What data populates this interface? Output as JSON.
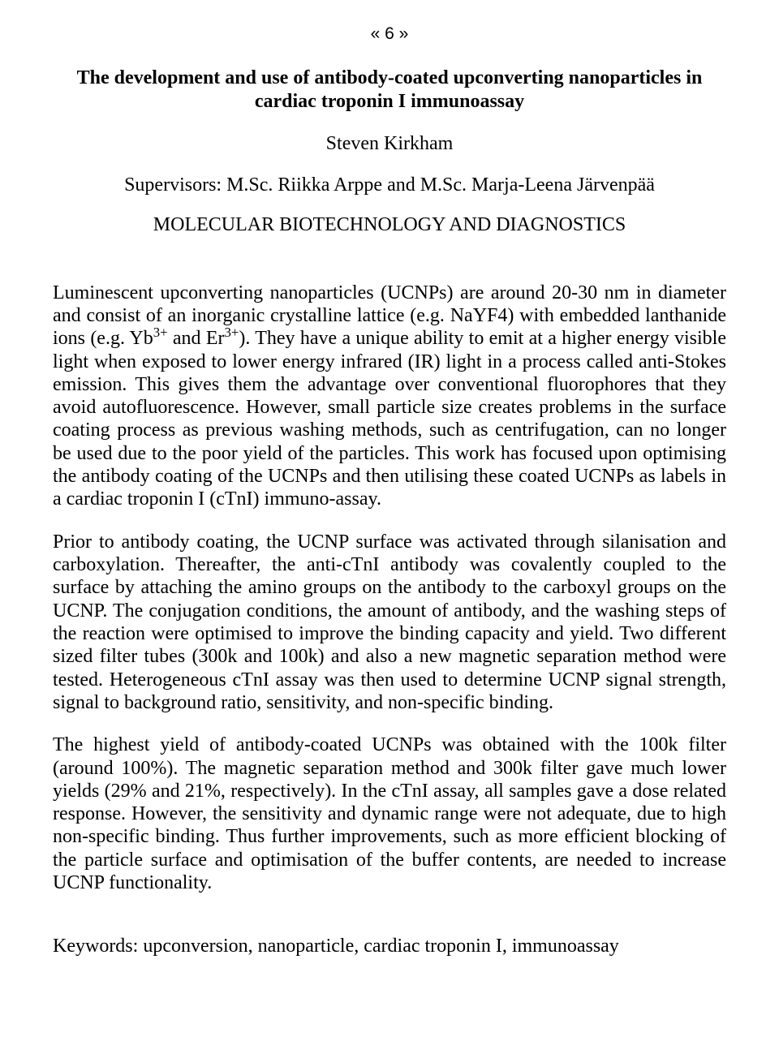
{
  "page_number_display": "« 6 »",
  "title": "The development and use of antibody-coated upconverting nanoparticles in cardiac troponin I immunoassay",
  "author": "Steven Kirkham",
  "supervisors": "Supervisors: M.Sc. Riikka Arppe and M.Sc. Marja-Leena Järvenpää",
  "department": "MOLECULAR BIOTECHNOLOGY AND DIAGNOSTICS",
  "paragraphs": {
    "p1_a": "Luminescent upconverting nanoparticles (UCNPs) are around 20-30 nm in diameter and consist of an inorganic crystalline lattice (e.g. NaYF4) with embedded lanthanide ions (e.g. Yb",
    "p1_sup1": "3+",
    "p1_b": " and Er",
    "p1_sup2": "3+",
    "p1_c": "). They have a unique ability to emit at a higher energy visible light when exposed to lower energy infrared (IR) light in a process called anti-Stokes emission. This gives them the advantage over conventional fluorophores that they avoid autofluorescence. However, small particle size creates problems in the surface coating process as previous washing methods, such as centrifugation, can no longer be used due to the poor yield of the particles. This work has focused upon optimising the antibody coating of the UCNPs and then utilising these coated UCNPs as labels in a cardiac troponin I (cTnI) immuno-assay.",
    "p2": "Prior to antibody coating, the UCNP surface was activated through silanisation and carboxylation. Thereafter, the anti-cTnI antibody was covalently coupled to the surface by attaching the amino groups on the antibody to the carboxyl groups on the UCNP. The conjugation conditions, the amount of antibody, and the washing steps of the reaction were optimised to improve the binding capacity and yield. Two different sized filter tubes (300k and 100k) and also a new magnetic separation method were tested. Heterogeneous cTnI assay was then used to determine UCNP signal strength, signal to background ratio, sensitivity, and non-specific binding.",
    "p3": "The highest yield of antibody-coated UCNPs was obtained with the 100k filter (around 100%). The magnetic separation method and 300k filter gave much lower yields (29% and 21%, respectively). In the cTnI assay, all samples gave a dose related response. However, the sensitivity and dynamic range were not adequate, due to high non-specific binding. Thus further improvements, such as more efficient blocking of the particle surface and optimisation of the buffer contents, are needed to increase UCNP functionality."
  },
  "keywords": "Keywords: upconversion, nanoparticle, cardiac troponin I, immunoassay"
}
